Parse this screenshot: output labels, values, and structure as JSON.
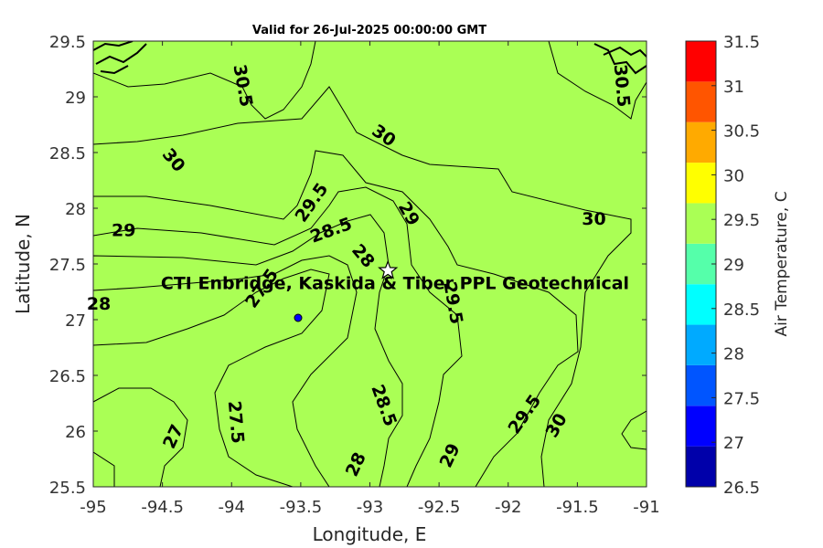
{
  "chart_data": {
    "type": "contour",
    "title": "Valid for 26-Jul-2025 00:00:00 GMT",
    "xlabel": "Longitude, E",
    "ylabel": "Latitude, N",
    "xlim": [
      -95,
      -91
    ],
    "ylim": [
      25.5,
      29.5
    ],
    "x_ticks": [
      "-95",
      "-94.5",
      "-94",
      "-93.5",
      "-93",
      "-92.5",
      "-92",
      "-91.5",
      "-91"
    ],
    "y_ticks": [
      "29.5",
      "29",
      "28.5",
      "28",
      "27.5",
      "27",
      "26.5",
      "26",
      "25.5"
    ],
    "colorbar": {
      "label": "Air Temperature, C",
      "levels": [
        26.5,
        27,
        27.5,
        28,
        28.5,
        29,
        29.5,
        30,
        30.5,
        31,
        31.5
      ],
      "tick_labels": [
        "31.5",
        "31",
        "30.5",
        "30",
        "29.5",
        "29",
        "28.5",
        "28",
        "27.5",
        "27",
        "26.5"
      ],
      "colors": [
        "#0000aa",
        "#0000ff",
        "#0055ff",
        "#00aaff",
        "#00ffff",
        "#55ffaa",
        "#aaff55",
        "#ffff00",
        "#ffaa00",
        "#ff5500",
        "#ff0000"
      ]
    },
    "contour_labels": [
      {
        "text": "30.5",
        "x": -93.92,
        "y": 29.1,
        "rotate": 80
      },
      {
        "text": "30.5",
        "x": -91.18,
        "y": 29.1,
        "rotate": 85
      },
      {
        "text": "30",
        "x": -94.42,
        "y": 28.43,
        "rotate": 50
      },
      {
        "text": "30",
        "x": -92.9,
        "y": 28.65,
        "rotate": 35
      },
      {
        "text": "30",
        "x": -91.38,
        "y": 27.9,
        "rotate": 0
      },
      {
        "text": "30",
        "x": -91.65,
        "y": 26.05,
        "rotate": -60
      },
      {
        "text": "29.5",
        "x": -93.42,
        "y": 28.05,
        "rotate": -55
      },
      {
        "text": "29.5",
        "x": -92.4,
        "y": 27.15,
        "rotate": 80
      },
      {
        "text": "29.5",
        "x": -91.88,
        "y": 26.15,
        "rotate": -55
      },
      {
        "text": "29",
        "x": -94.78,
        "y": 27.8,
        "rotate": 0
      },
      {
        "text": "29",
        "x": -92.72,
        "y": 27.95,
        "rotate": 60
      },
      {
        "text": "29",
        "x": -92.42,
        "y": 25.78,
        "rotate": -65
      },
      {
        "text": "28.5",
        "x": -93.28,
        "y": 27.8,
        "rotate": -20
      },
      {
        "text": "28.5",
        "x": -92.9,
        "y": 26.23,
        "rotate": 70
      },
      {
        "text": "28",
        "x": -93.05,
        "y": 27.57,
        "rotate": 50
      },
      {
        "text": "28",
        "x": -94.96,
        "y": 27.14,
        "rotate": 0
      },
      {
        "text": "28",
        "x": -93.1,
        "y": 25.7,
        "rotate": -65
      },
      {
        "text": "27.5",
        "x": -93.78,
        "y": 27.28,
        "rotate": -55
      },
      {
        "text": "27.5",
        "x": -93.97,
        "y": 26.08,
        "rotate": 85
      },
      {
        "text": "27",
        "x": -94.42,
        "y": 25.95,
        "rotate": -65
      }
    ],
    "site": {
      "label": "CTI Enbridge, Kaskida & Tiber PPL Geotechnical",
      "lon": -92.87,
      "lat": 27.44
    }
  }
}
